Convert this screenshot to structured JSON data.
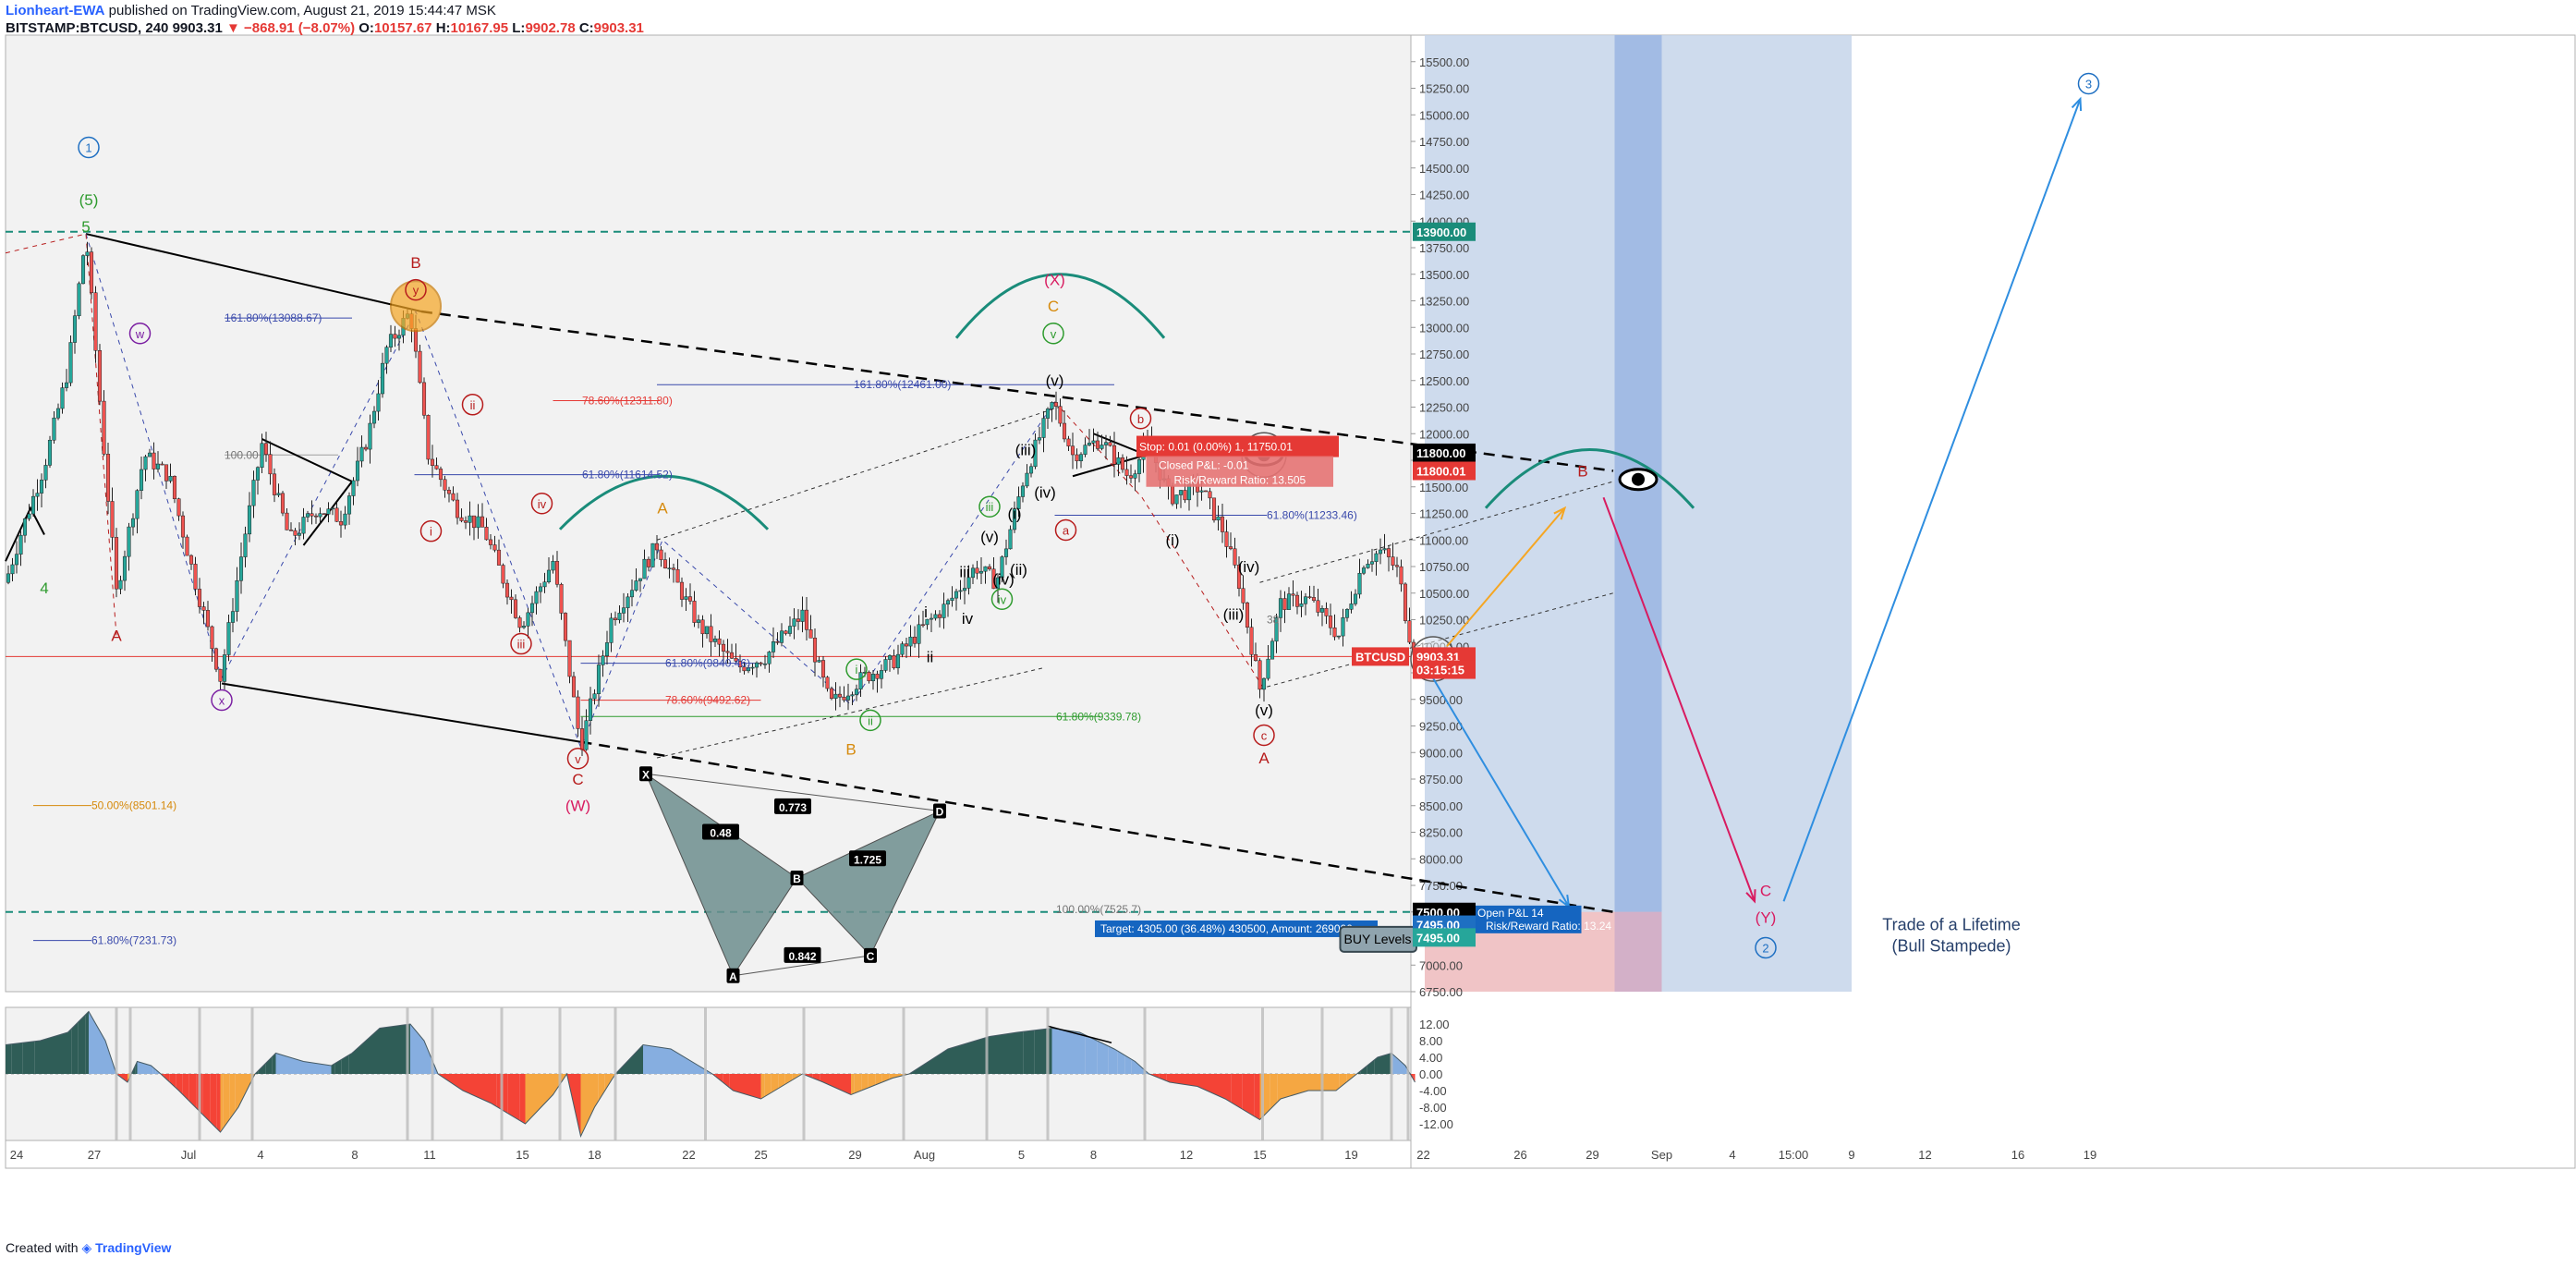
{
  "header": {
    "author": "Lionheart-EWA",
    "published_text": " published on TradingView.com, August 21, 2019 15:44:47 MSK",
    "symbol": "BITSTAMP:BTCUSD, 240",
    "last": "9903.31",
    "change": "▼ −868.91 (−8.07%)",
    "o_label": "O:",
    "o": "10157.67",
    "h_label": "H:",
    "h": "10167.95",
    "l_label": "L:",
    "l": "9902.78",
    "c_label": "C:",
    "c": "9903.31"
  },
  "footer": {
    "created_with": "Created with",
    "brand": "TradingView"
  },
  "colors": {
    "panel_bg": "#f2f2f2",
    "bull": "#26a69a",
    "bear": "#ef5350",
    "body_dark": "#1f3d3a",
    "zone_blue": "#c5d5ea",
    "zone_blue_dark": "#9db7e2",
    "zone_red": "#f4c1c1",
    "trend_teal": "#1a8c7a",
    "wave_red": "#b71c1c",
    "wave_purple": "#7b1fa2",
    "wave_blue": "#1e6fc2",
    "wave_green": "#2e9b2e",
    "wave_orange": "#d68a0c",
    "wave_pink": "#d81b60"
  },
  "chart_data": [
    {
      "type": "candlestick",
      "symbol": "BITSTAMP:BTCUSD",
      "timeframe": "240",
      "ylim": [
        6750,
        15750
      ],
      "y_ticks": [
        "15500.00",
        "15250.00",
        "15000.00",
        "14750.00",
        "14500.00",
        "14250.00",
        "14000.00",
        "13750.00",
        "13500.00",
        "13250.00",
        "13000.00",
        "12750.00",
        "12500.00",
        "12250.00",
        "12000.00",
        "11750.00",
        "11500.00",
        "11250.00",
        "11000.00",
        "10750.00",
        "10500.00",
        "10250.00",
        "10000.00",
        "9750.00",
        "9500.00",
        "9250.00",
        "9000.00",
        "8750.00",
        "8500.00",
        "8250.00",
        "8000.00",
        "7750.00",
        "7500.00",
        "7250.00",
        "7000.00",
        "6750.00"
      ],
      "x_ticks": [
        "24",
        "27",
        "Jul",
        "4",
        "8",
        "11",
        "15",
        "18",
        "22",
        "25",
        "29",
        "Aug",
        "5",
        "8",
        "12",
        "15",
        "19",
        "22",
        "26",
        "29",
        "Sep",
        "4",
        "15:00",
        "9",
        "12",
        "16",
        "19"
      ],
      "price_labels": [
        {
          "text": "13900.00",
          "y": 13900,
          "color": "#1a8c7a"
        },
        {
          "text": "11800.00",
          "y": 11820,
          "color": "#000000"
        },
        {
          "text": "11800.01",
          "y": 11650,
          "color": "#e53935"
        },
        {
          "text": "BTCUSD",
          "y": 9903,
          "color": "#e53935"
        },
        {
          "text": "9903.31",
          "y": 9903,
          "color": "#e53935"
        },
        {
          "text": "03:15:15",
          "y": 9780,
          "color": "#e53935"
        },
        {
          "text": "7500.00",
          "y": 7500,
          "color": "#000000"
        },
        {
          "text": "7495.00",
          "y": 7380,
          "color": "#1e6fc2"
        },
        {
          "text": "7495.00",
          "y": 7260,
          "color": "#26a69a"
        }
      ],
      "anchors": [
        [
          0,
          10600
        ],
        [
          12,
          11100
        ],
        [
          28,
          11700
        ],
        [
          45,
          12600
        ],
        [
          58,
          13880
        ],
        [
          70,
          12000
        ],
        [
          80,
          10500
        ],
        [
          100,
          11800
        ],
        [
          118,
          11600
        ],
        [
          135,
          10700
        ],
        [
          155,
          9700
        ],
        [
          172,
          11000
        ],
        [
          185,
          11900
        ],
        [
          205,
          11000
        ],
        [
          225,
          11300
        ],
        [
          242,
          11200
        ],
        [
          262,
          12000
        ],
        [
          275,
          12800
        ],
        [
          292,
          13150
        ],
        [
          305,
          11800
        ],
        [
          325,
          11300
        ],
        [
          345,
          11100
        ],
        [
          372,
          10200
        ],
        [
          395,
          10800
        ],
        [
          415,
          9050
        ],
        [
          437,
          10250
        ],
        [
          470,
          10950
        ],
        [
          500,
          10200
        ],
        [
          528,
          9800
        ],
        [
          548,
          9900
        ],
        [
          575,
          10300
        ],
        [
          595,
          9450
        ],
        [
          618,
          9700
        ],
        [
          640,
          9850
        ],
        [
          660,
          10150
        ],
        [
          680,
          10400
        ],
        [
          700,
          10750
        ],
        [
          715,
          10600
        ],
        [
          735,
          11600
        ],
        [
          756,
          12300
        ],
        [
          770,
          11800
        ],
        [
          790,
          11950
        ],
        [
          810,
          11600
        ],
        [
          825,
          11900
        ],
        [
          840,
          11400
        ],
        [
          862,
          11500
        ],
        [
          878,
          11100
        ],
        [
          890,
          10600
        ],
        [
          905,
          9600
        ],
        [
          920,
          10400
        ],
        [
          940,
          10450
        ],
        [
          962,
          10100
        ],
        [
          980,
          10800
        ],
        [
          993,
          10900
        ],
        [
          1005,
          10700
        ],
        [
          1012,
          10150
        ],
        [
          1018,
          9903
        ]
      ],
      "waves": [
        {
          "t": "1",
          "x": 60,
          "y": 14650,
          "c": "#1e6fc2",
          "ring": true
        },
        {
          "t": "(5)",
          "x": 60,
          "y": 14150,
          "c": "#2e9b2e"
        },
        {
          "t": "5",
          "x": 58,
          "y": 13900,
          "c": "#2e9b2e"
        },
        {
          "t": "4",
          "x": 28,
          "y": 10500,
          "c": "#2e9b2e"
        },
        {
          "t": "A",
          "x": 80,
          "y": 10050,
          "c": "#b71c1c"
        },
        {
          "t": "w",
          "x": 97,
          "y": 12900,
          "c": "#7b1fa2",
          "ring": true
        },
        {
          "t": "x",
          "x": 156,
          "y": 9450,
          "c": "#7b1fa2",
          "ring": true
        },
        {
          "t": "B",
          "x": 296,
          "y": 13560,
          "c": "#b71c1c"
        },
        {
          "t": "y",
          "x": 296,
          "y": 13310,
          "c": "#b71c1c",
          "ring": true
        },
        {
          "t": "ii",
          "x": 337,
          "y": 12230,
          "c": "#b71c1c",
          "ring": true
        },
        {
          "t": "i",
          "x": 307,
          "y": 11040,
          "c": "#b71c1c",
          "ring": true
        },
        {
          "t": "iv",
          "x": 387,
          "y": 11300,
          "c": "#b71c1c",
          "ring": true
        },
        {
          "t": "iii",
          "x": 372,
          "y": 9980,
          "c": "#b71c1c",
          "ring": true
        },
        {
          "t": "v",
          "x": 413,
          "y": 8900,
          "c": "#b71c1c",
          "ring": true
        },
        {
          "t": "C",
          "x": 413,
          "y": 8700,
          "c": "#b71c1c"
        },
        {
          "t": "(W)",
          "x": 413,
          "y": 8450,
          "c": "#d81b60"
        },
        {
          "t": "A",
          "x": 474,
          "y": 11250,
          "c": "#d68a0c"
        },
        {
          "t": "i",
          "x": 614,
          "y": 9740,
          "c": "#2e9b2e",
          "ring": true
        },
        {
          "t": "ii",
          "x": 624,
          "y": 9260,
          "c": "#2e9b2e",
          "ring": true
        },
        {
          "t": "B",
          "x": 610,
          "y": 8980,
          "c": "#d68a0c"
        },
        {
          "t": "i",
          "x": 664,
          "y": 10270,
          "c": "#000000"
        },
        {
          "t": "ii",
          "x": 667,
          "y": 9850,
          "c": "#000000"
        },
        {
          "t": "iii",
          "x": 692,
          "y": 10650,
          "c": "#000000"
        },
        {
          "t": "iv",
          "x": 694,
          "y": 10210,
          "c": "#000000"
        },
        {
          "t": "(iv)",
          "x": 720,
          "y": 10580,
          "c": "#000000"
        },
        {
          "t": "(ii)",
          "x": 731,
          "y": 10670,
          "c": "#000000"
        },
        {
          "t": "(v)",
          "x": 710,
          "y": 10980,
          "c": "#000000"
        },
        {
          "t": "iii",
          "x": 710,
          "y": 11270,
          "c": "#2e9b2e",
          "ring": true
        },
        {
          "t": "iv",
          "x": 719,
          "y": 10400,
          "c": "#2e9b2e",
          "ring": true
        },
        {
          "t": "(i)",
          "x": 728,
          "y": 11200,
          "c": "#000000"
        },
        {
          "t": "(iii)",
          "x": 736,
          "y": 11800,
          "c": "#000000"
        },
        {
          "t": "(iv)",
          "x": 750,
          "y": 11400,
          "c": "#000000"
        },
        {
          "t": "(X)",
          "x": 757,
          "y": 13400,
          "c": "#d81b60"
        },
        {
          "t": "C",
          "x": 756,
          "y": 13150,
          "c": "#d68a0c"
        },
        {
          "t": "v",
          "x": 756,
          "y": 12900,
          "c": "#2e9b2e",
          "ring": true
        },
        {
          "t": "(v)",
          "x": 757,
          "y": 12450,
          "c": "#000000"
        },
        {
          "t": "b",
          "x": 819,
          "y": 12100,
          "c": "#b71c1c",
          "ring": true
        },
        {
          "t": "a",
          "x": 765,
          "y": 11050,
          "c": "#b71c1c",
          "ring": true
        },
        {
          "t": "(i)",
          "x": 842,
          "y": 10950,
          "c": "#000000"
        },
        {
          "t": "(iv)",
          "x": 897,
          "y": 10700,
          "c": "#000000"
        },
        {
          "t": "(iii)",
          "x": 886,
          "y": 10250,
          "c": "#000000"
        },
        {
          "t": "(v)",
          "x": 908,
          "y": 9350,
          "c": "#000000"
        },
        {
          "t": "c",
          "x": 908,
          "y": 9120,
          "c": "#b71c1c",
          "ring": true
        },
        {
          "t": "A",
          "x": 908,
          "y": 8900,
          "c": "#b71c1c"
        },
        {
          "t": "B",
          "x": 1138,
          "y": 11600,
          "c": "#b71c1c"
        },
        {
          "t": "C",
          "x": 1270,
          "y": 7650,
          "c": "#d81b60"
        },
        {
          "t": "(Y)",
          "x": 1270,
          "y": 7400,
          "c": "#d81b60"
        },
        {
          "t": "2",
          "x": 1270,
          "y": 7120,
          "c": "#1e6fc2",
          "ring": true
        },
        {
          "t": "3",
          "x": 1503,
          "y": 15250,
          "c": "#1e6fc2",
          "ring": true
        }
      ],
      "fib_labels": [
        {
          "t": "161.80%(13088.67)",
          "x": 158,
          "y": 13088,
          "c": "#3949ab"
        },
        {
          "t": "100.00",
          "x": 158,
          "y": 11800,
          "c": "#757575"
        },
        {
          "t": "78.60%(12311.80)",
          "x": 416,
          "y": 12311,
          "c": "#e53935"
        },
        {
          "t": "61.80%(11614.52)",
          "x": 416,
          "y": 11614,
          "c": "#3949ab"
        },
        {
          "t": "161.80%(12461.00)",
          "x": 612,
          "y": 12461,
          "c": "#3949ab"
        },
        {
          "t": "61.80%(9840.46)",
          "x": 476,
          "y": 9840,
          "c": "#3949ab"
        },
        {
          "t": "78.60%(9492.62)",
          "x": 476,
          "y": 9492,
          "c": "#e53935"
        },
        {
          "t": "61.80%(9339.78)",
          "x": 758,
          "y": 9339,
          "c": "#2e9b2e"
        },
        {
          "t": "61.80%(11233.46)",
          "x": 910,
          "y": 11233,
          "c": "#3949ab"
        },
        {
          "t": "38",
          "x": 910,
          "y": 10250,
          "c": "#757575"
        },
        {
          "t": "50.00%(8501.14)",
          "x": 62,
          "y": 8501,
          "c": "#d68a0c"
        },
        {
          "t": "61.80%(7231.73)",
          "x": 62,
          "y": 7231,
          "c": "#3949ab"
        },
        {
          "t": "100.00%(7525.7)",
          "x": 758,
          "y": 7525,
          "c": "#757575"
        }
      ],
      "bat_points": [
        {
          "t": "X",
          "x": 462,
          "y": 8800
        },
        {
          "t": "A",
          "x": 525,
          "y": 6900
        },
        {
          "t": "B",
          "x": 571,
          "y": 7820
        },
        {
          "t": "C",
          "x": 624,
          "y": 7090
        },
        {
          "t": "D",
          "x": 674,
          "y": 8450
        }
      ],
      "bat_ratios": [
        {
          "t": "0.773",
          "x": 568,
          "y": 8490
        },
        {
          "t": "0.48",
          "x": 516,
          "y": 8250
        },
        {
          "t": "1.725",
          "x": 622,
          "y": 8000
        },
        {
          "t": "0.842",
          "x": 575,
          "y": 7090
        }
      ],
      "position": {
        "stop_label": "Stop: 0.01 (0.00%) 1, 11750.01",
        "pl_label": "Closed P&L: -0.01",
        "rr_top_label": "Risk/Reward Ratio: 13.505",
        "target_label": "Target: 4305.00 (36.48%) 430500, Amount: 269000",
        "open_label": "Open P&L 14",
        "rr_bottom_label": "Risk/Reward Ratio: 13.24"
      },
      "annotations": {
        "buy_levels": "BUY Levels",
        "trade_title_1": "Trade of a Lifetime",
        "trade_title_2": "(Bull Stampede)"
      }
    },
    {
      "type": "area",
      "name": "oscillator",
      "ylim": [
        -16,
        16
      ],
      "y_ticks": [
        "12.00",
        "8.00",
        "4.00",
        "0.00",
        "-4.00",
        "-8.00",
        "-12.00"
      ],
      "points": [
        [
          0,
          7
        ],
        [
          25,
          8
        ],
        [
          45,
          10
        ],
        [
          60,
          15
        ],
        [
          72,
          8
        ],
        [
          80,
          0
        ],
        [
          88,
          -2
        ],
        [
          95,
          3
        ],
        [
          105,
          2
        ],
        [
          112,
          0
        ],
        [
          125,
          -4
        ],
        [
          140,
          -9
        ],
        [
          155,
          -14
        ],
        [
          168,
          -8
        ],
        [
          180,
          0
        ],
        [
          195,
          5
        ],
        [
          215,
          3
        ],
        [
          235,
          2
        ],
        [
          250,
          5
        ],
        [
          270,
          11
        ],
        [
          292,
          12
        ],
        [
          302,
          8
        ],
        [
          312,
          0
        ],
        [
          330,
          -4
        ],
        [
          350,
          -7
        ],
        [
          375,
          -12
        ],
        [
          395,
          -5
        ],
        [
          405,
          0
        ],
        [
          415,
          -15
        ],
        [
          425,
          -8
        ],
        [
          440,
          0
        ],
        [
          460,
          7
        ],
        [
          480,
          6
        ],
        [
          500,
          2
        ],
        [
          510,
          0
        ],
        [
          525,
          -4
        ],
        [
          545,
          -6
        ],
        [
          560,
          -3
        ],
        [
          575,
          0
        ],
        [
          590,
          -2
        ],
        [
          610,
          -5
        ],
        [
          625,
          -3
        ],
        [
          640,
          -1
        ],
        [
          652,
          0
        ],
        [
          680,
          6
        ],
        [
          710,
          9
        ],
        [
          730,
          10
        ],
        [
          755,
          11
        ],
        [
          775,
          10
        ],
        [
          800,
          6
        ],
        [
          815,
          3
        ],
        [
          825,
          0
        ],
        [
          840,
          -2
        ],
        [
          860,
          -3
        ],
        [
          880,
          -6
        ],
        [
          905,
          -11
        ],
        [
          920,
          -6
        ],
        [
          940,
          -4
        ],
        [
          960,
          -4
        ],
        [
          975,
          0
        ],
        [
          990,
          4
        ],
        [
          1000,
          5
        ],
        [
          1010,
          2
        ],
        [
          1017,
          -2
        ]
      ]
    }
  ]
}
